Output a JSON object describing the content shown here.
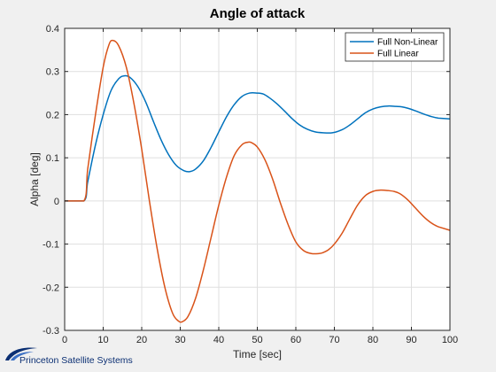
{
  "chart_data": {
    "type": "line",
    "title": "Angle of attack",
    "xlabel": "Time [sec]",
    "ylabel": "Alpha [deg]",
    "xlim": [
      0,
      100
    ],
    "ylim": [
      -0.3,
      0.4
    ],
    "xticks": [
      "0",
      "10",
      "20",
      "30",
      "40",
      "50",
      "60",
      "70",
      "80",
      "90",
      "100"
    ],
    "yticks": [
      "-0.3",
      "-0.2",
      "-0.1",
      "0",
      "0.1",
      "0.2",
      "0.3",
      "0.4"
    ],
    "grid": true,
    "legend_position": "top-right",
    "series": [
      {
        "name": "Full Non-Linear",
        "color": "#0072BD",
        "x": [
          0,
          5,
          6,
          8,
          10,
          12,
          14,
          15.5,
          17,
          19,
          21,
          23,
          25,
          27,
          29,
          31,
          32.5,
          34,
          36,
          38,
          40,
          42,
          44,
          46,
          48,
          50,
          51.5,
          53,
          55,
          57,
          59,
          61,
          63,
          65,
          67,
          69.5,
          72,
          74,
          76,
          78,
          80,
          82,
          84,
          86,
          87.5,
          89,
          91,
          93,
          95,
          97,
          100
        ],
        "y": [
          0,
          0,
          0.045,
          0.13,
          0.2,
          0.255,
          0.283,
          0.29,
          0.286,
          0.265,
          0.23,
          0.185,
          0.142,
          0.107,
          0.082,
          0.07,
          0.068,
          0.074,
          0.093,
          0.124,
          0.16,
          0.195,
          0.223,
          0.242,
          0.25,
          0.25,
          0.248,
          0.24,
          0.226,
          0.209,
          0.191,
          0.176,
          0.166,
          0.16,
          0.158,
          0.158,
          0.165,
          0.176,
          0.19,
          0.204,
          0.213,
          0.218,
          0.22,
          0.219,
          0.218,
          0.215,
          0.209,
          0.202,
          0.196,
          0.192,
          0.19
        ]
      },
      {
        "name": "Full Linear",
        "color": "#D95319",
        "x": [
          0,
          5,
          6,
          8,
          10,
          11.5,
          12.5,
          14,
          16,
          18,
          20,
          22,
          24,
          26,
          28,
          29.5,
          30.5,
          32,
          34,
          36,
          38,
          40,
          42,
          44,
          46,
          47.5,
          48.5,
          50,
          52,
          54,
          56,
          58,
          60,
          62,
          64,
          66,
          67,
          68.5,
          70,
          72,
          74,
          76,
          78,
          80,
          82,
          84,
          85.5,
          87,
          89,
          91,
          93,
          95,
          97,
          100
        ],
        "y": [
          0,
          0,
          0.075,
          0.2,
          0.31,
          0.362,
          0.372,
          0.36,
          0.31,
          0.225,
          0.12,
          0.0,
          -0.11,
          -0.2,
          -0.26,
          -0.278,
          -0.28,
          -0.268,
          -0.225,
          -0.16,
          -0.085,
          -0.01,
          0.055,
          0.105,
          0.13,
          0.136,
          0.135,
          0.125,
          0.095,
          0.05,
          -0.005,
          -0.055,
          -0.095,
          -0.115,
          -0.122,
          -0.122,
          -0.12,
          -0.113,
          -0.1,
          -0.075,
          -0.042,
          -0.01,
          0.012,
          0.022,
          0.025,
          0.024,
          0.022,
          0.017,
          0.003,
          -0.016,
          -0.035,
          -0.05,
          -0.06,
          -0.068
        ]
      }
    ]
  },
  "branding": {
    "logo_text": "Princeton Satellite Systems",
    "logo_color": "#0b2f73"
  }
}
